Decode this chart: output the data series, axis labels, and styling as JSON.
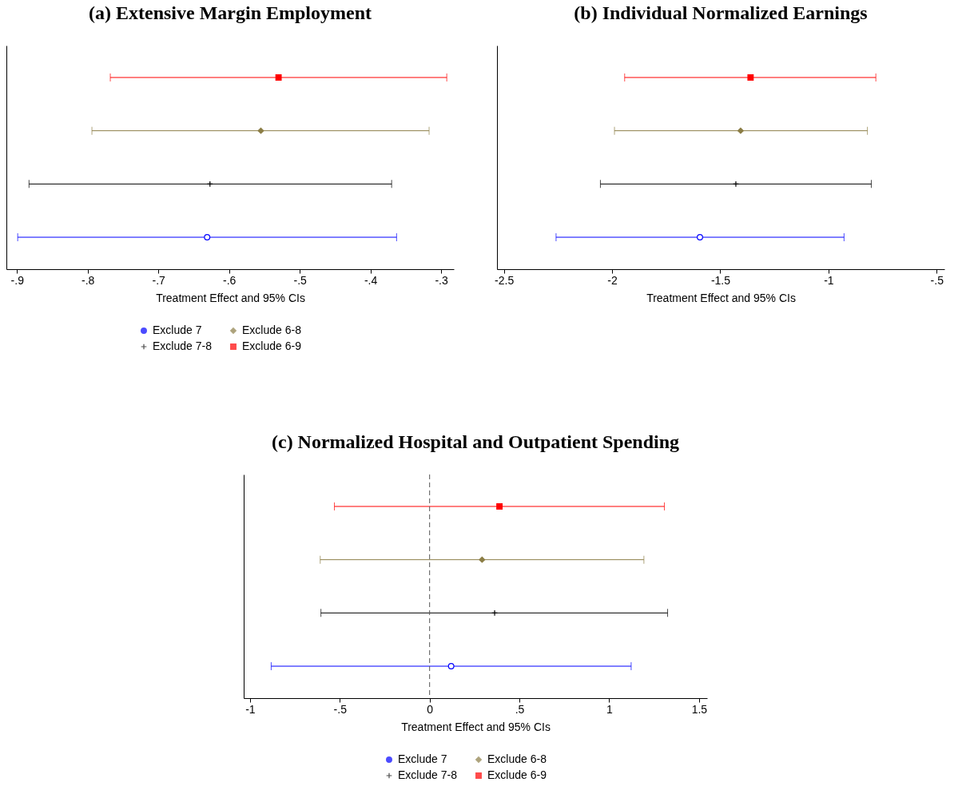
{
  "chart_data": [
    {
      "type": "scatter",
      "orientation": "horizontal",
      "title": "(a) Extensive Margin Employment",
      "xlabel": "Treatment Effect and 95% CIs",
      "categories": [
        null,
        null,
        null,
        null
      ],
      "xlim": [
        -0.915,
        -0.282
      ],
      "xticks": [
        {
          "value": -0.9,
          "label": "-.9"
        },
        {
          "value": -0.8,
          "label": "-.8"
        },
        {
          "value": -0.7,
          "label": "-.7"
        },
        {
          "value": -0.6,
          "label": "-.6"
        },
        {
          "value": -0.5,
          "label": "-.5"
        },
        {
          "value": -0.4,
          "label": "-.4"
        },
        {
          "value": -0.3,
          "label": "-.3"
        }
      ],
      "tick_labels": "x",
      "grid": false,
      "legend": "bottom",
      "series": [
        {
          "name": "Exclude 7",
          "color": "#0000ff",
          "marker": "circle",
          "values": [
            null,
            null,
            null,
            -0.631
          ],
          "errors": [
            null,
            null,
            null,
            [
              -0.899,
              -0.363
            ]
          ]
        },
        {
          "name": "Exclude 7-8",
          "color": "#000000",
          "marker": "cross",
          "values": [
            null,
            null,
            -0.627,
            null
          ],
          "errors": [
            null,
            null,
            [
              -0.883,
              -0.37
            ],
            null
          ]
        },
        {
          "name": "Exclude 6-8",
          "color": "#8b7d45",
          "marker": "diamond",
          "values": [
            null,
            -0.555,
            null,
            null
          ],
          "errors": [
            null,
            [
              -0.794,
              -0.317
            ],
            null,
            null
          ]
        },
        {
          "name": "Exclude 6-9",
          "color": "#ff0000",
          "marker": "square",
          "values": [
            -0.53,
            null,
            null,
            null
          ],
          "errors": [
            [
              -0.768,
              -0.292
            ],
            null,
            null,
            null
          ]
        }
      ]
    },
    {
      "type": "scatter",
      "orientation": "horizontal",
      "title": "(b) Individual Normalized Earnings",
      "xlabel": "Treatment Effect and 95% CIs",
      "categories": [
        null,
        null,
        null,
        null
      ],
      "xlim": [
        -2.532,
        -0.464
      ],
      "xticks": [
        -2.5,
        -2,
        -1.5,
        -1,
        {
          "value": -0.5,
          "label": "-.5"
        }
      ],
      "tick_labels": "x",
      "grid": false,
      "legend": "bottom",
      "series": [
        {
          "name": "Exclude 7",
          "color": "#0000ff",
          "marker": "circle",
          "values": [
            null,
            null,
            null,
            -1.594
          ],
          "errors": [
            null,
            null,
            null,
            [
              -2.259,
              -0.928
            ]
          ]
        },
        {
          "name": "Exclude 7-8",
          "color": "#000000",
          "marker": "cross",
          "values": [
            null,
            null,
            -1.428,
            null
          ],
          "errors": [
            null,
            null,
            [
              -2.054,
              -0.802
            ],
            null
          ]
        },
        {
          "name": "Exclude 6-8",
          "color": "#8b7d45",
          "marker": "diamond",
          "values": [
            null,
            -1.406,
            null,
            null
          ],
          "errors": [
            null,
            [
              -1.989,
              -0.82
            ],
            null,
            null
          ]
        },
        {
          "name": "Exclude 6-9",
          "color": "#ff0000",
          "marker": "square",
          "values": [
            -1.36,
            null,
            null,
            null
          ],
          "errors": [
            [
              -1.942,
              -0.781
            ],
            null,
            null,
            null
          ]
        }
      ]
    },
    {
      "type": "scatter",
      "orientation": "horizontal",
      "title": "(c) Normalized Hospital and Outpatient Spending",
      "xlabel": "Treatment Effect and 95% CIs",
      "categories": [
        null,
        null,
        null,
        null
      ],
      "xlim": [
        -1.035,
        1.545
      ],
      "xticks": [
        -1,
        {
          "value": -0.5,
          "label": "-.5"
        },
        0,
        {
          "value": 0.5,
          "label": ".5"
        },
        1,
        1.5
      ],
      "tick_labels": "x",
      "grid": false,
      "legend": "bottom",
      "ref_lines": [
        {
          "axis": "x",
          "value": 0,
          "color": "#555555",
          "line_style": "dashed"
        }
      ],
      "series": [
        {
          "name": "Exclude 7",
          "color": "#0000ff",
          "marker": "circle",
          "values": [
            null,
            null,
            null,
            0.12
          ],
          "errors": [
            null,
            null,
            null,
            [
              -0.882,
              1.122
            ]
          ]
        },
        {
          "name": "Exclude 7-8",
          "color": "#000000",
          "marker": "cross",
          "values": [
            null,
            null,
            0.362,
            null
          ],
          "errors": [
            null,
            null,
            [
              -0.605,
              1.325
            ],
            null
          ]
        },
        {
          "name": "Exclude 6-8",
          "color": "#8b7d45",
          "marker": "diamond",
          "values": [
            null,
            0.292,
            null,
            null
          ],
          "errors": [
            null,
            [
              -0.609,
              1.193
            ],
            null,
            null
          ]
        },
        {
          "name": "Exclude 6-9",
          "color": "#ff0000",
          "marker": "square",
          "values": [
            0.389,
            null,
            null,
            null
          ],
          "errors": [
            [
              -0.53,
              1.307
            ],
            null,
            null,
            null
          ]
        }
      ]
    }
  ]
}
